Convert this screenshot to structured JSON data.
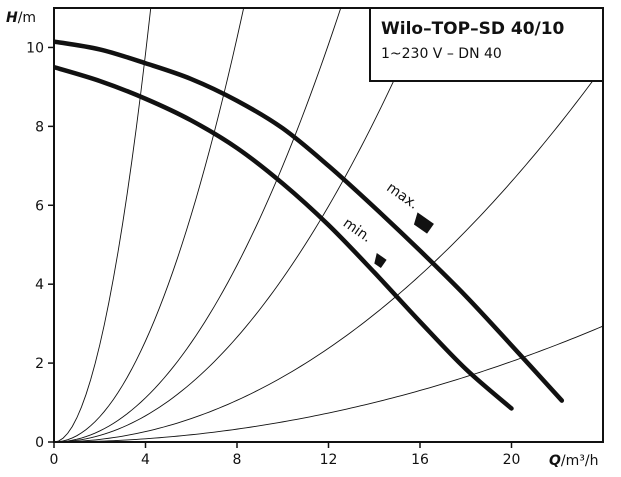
{
  "title_box": {
    "model": "Wilo–TOP–SD 40/10",
    "spec": "1~230 V – DN 40"
  },
  "chart_data": {
    "type": "line",
    "title": "Wilo–TOP–SD 40/10",
    "subtitle": "1~230 V – DN 40",
    "xlabel_var": "Q",
    "xlabel_unit": "/m³/h",
    "ylabel_var": "H",
    "ylabel_unit": "/m",
    "xlim": [
      0,
      24
    ],
    "ylim": [
      0,
      11
    ],
    "x_ticks": [
      0,
      4,
      8,
      12,
      16,
      20
    ],
    "y_ticks": [
      0,
      2,
      4,
      6,
      8,
      10
    ],
    "grid": false,
    "series": [
      {
        "name": "max.",
        "x": [
          0,
          2,
          4,
          6,
          8,
          10,
          12,
          14,
          16,
          18,
          20,
          22.2
        ],
        "y": [
          10.15,
          9.95,
          9.6,
          9.2,
          8.65,
          7.95,
          7.0,
          5.95,
          4.85,
          3.7,
          2.45,
          1.05
        ]
      },
      {
        "name": "min.",
        "x": [
          0,
          2,
          4,
          6,
          8,
          10,
          12,
          14,
          16,
          18,
          20
        ],
        "y": [
          9.5,
          9.15,
          8.7,
          8.15,
          7.45,
          6.55,
          5.5,
          4.3,
          3.05,
          1.85,
          0.85
        ]
      }
    ],
    "system_curves": [
      {
        "k": 0.615
      },
      {
        "k": 0.16
      },
      {
        "k": 0.07
      },
      {
        "k": 0.0415
      },
      {
        "k": 0.0165
      },
      {
        "k": 0.0051
      }
    ]
  }
}
